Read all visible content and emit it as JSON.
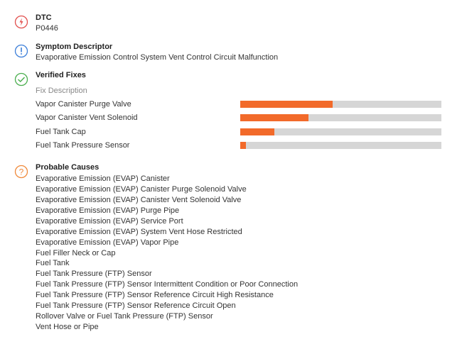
{
  "dtc": {
    "title": "DTC",
    "code": "P0446"
  },
  "symptom": {
    "title": "Symptom Descriptor",
    "text": "Evaporative Emission Control System Vent Control Circuit Malfunction"
  },
  "verified_fixes": {
    "title": "Verified Fixes",
    "column_header": "Fix Description",
    "xlim": [
      0,
      100
    ],
    "fixes": [
      {
        "name": "Vapor Canister Purge Valve",
        "value": 46
      },
      {
        "name": "Vapor Canister Vent Solenoid",
        "value": 34
      },
      {
        "name": "Fuel Tank Cap",
        "value": 17
      },
      {
        "name": "Fuel Tank Pressure Sensor",
        "value": 3
      }
    ]
  },
  "probable_causes": {
    "title": "Probable Causes",
    "items": [
      "Evaporative Emission (EVAP) Canister",
      "Evaporative Emission (EVAP) Canister Purge Solenoid Valve",
      "Evaporative Emission (EVAP) Canister Vent Solenoid Valve",
      "Evaporative Emission (EVAP) Purge Pipe",
      "Evaporative Emission (EVAP) Service Port",
      "Evaporative Emission (EVAP) System Vent Hose Restricted",
      "Evaporative Emission (EVAP) Vapor Pipe",
      "Fuel Filler Neck or Cap",
      "Fuel Tank",
      "Fuel Tank Pressure (FTP) Sensor",
      "Fuel Tank Pressure (FTP) Sensor Intermittent Condition or Poor Connection",
      "Fuel Tank Pressure (FTP) Sensor Reference Circuit High Resistance",
      "Fuel Tank Pressure (FTP) Sensor Reference Circuit Open",
      "Rollover Valve or Fuel Tank Pressure (FTP) Sensor",
      "Vent Hose or Pipe"
    ]
  }
}
